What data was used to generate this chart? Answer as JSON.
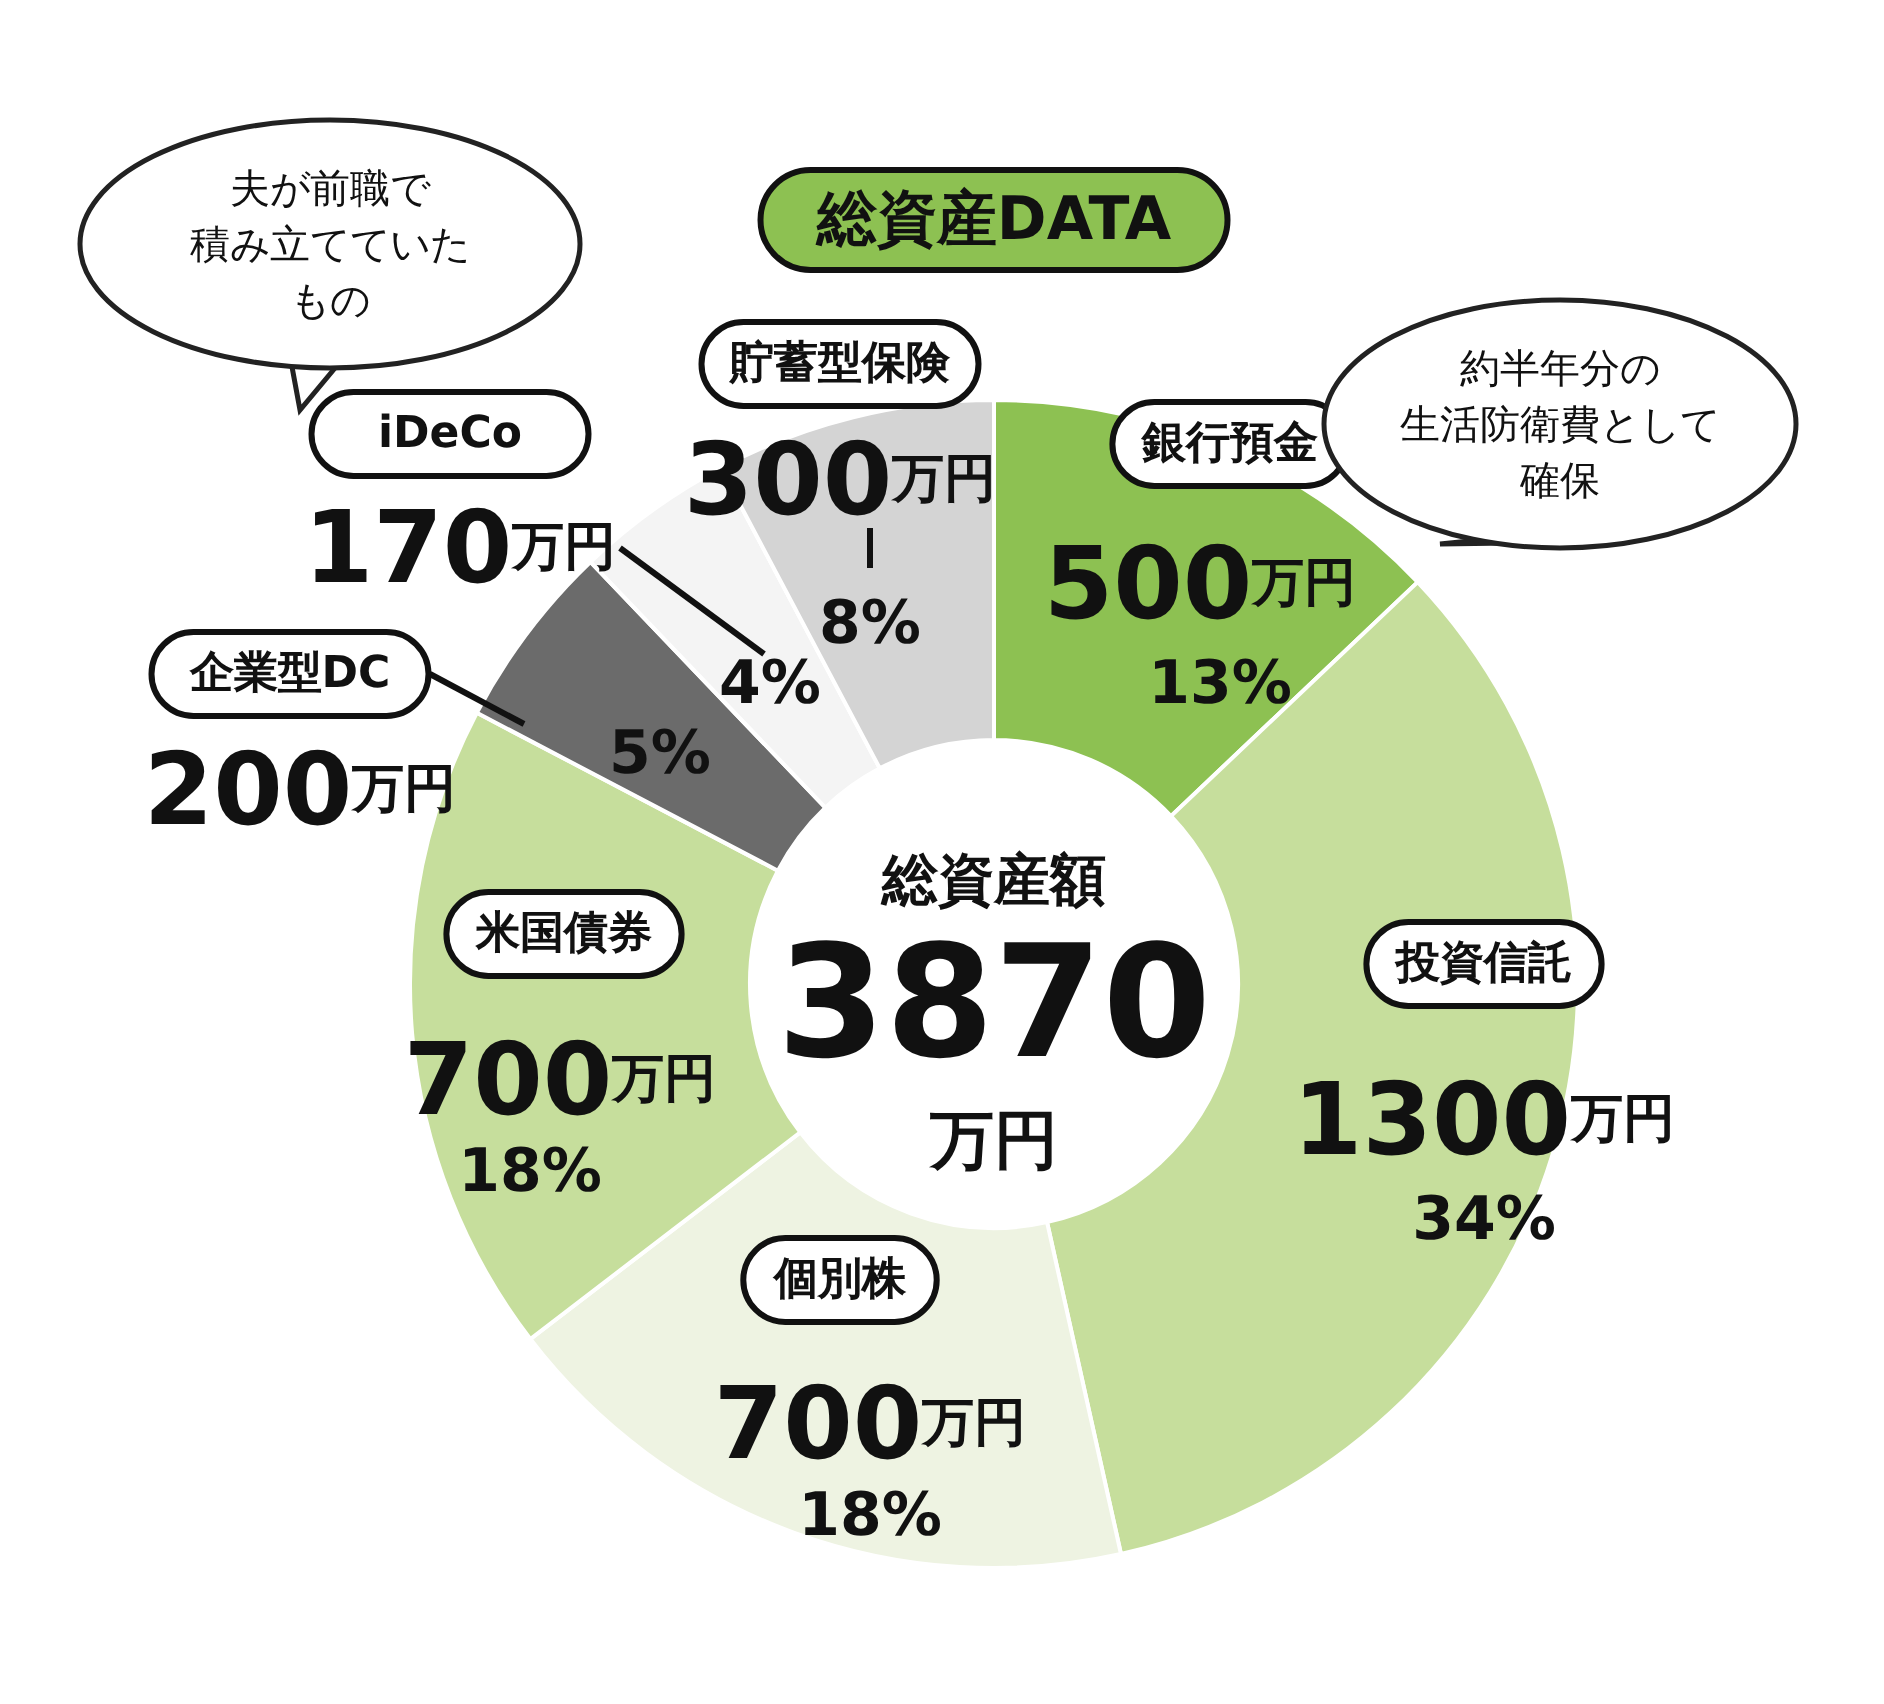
{
  "chart_data": {
    "type": "donut",
    "title": "総資産DATA",
    "categories": [
      "銀行預金",
      "投資信託",
      "個別株",
      "米国債券",
      "企業型DC",
      "iDeCo",
      "貯蓄型保険"
    ],
    "values": [
      500,
      1300,
      700,
      700,
      200,
      170,
      300
    ],
    "colors": [
      "#8dc152",
      "#c6de9c",
      "#eef3e2",
      "#c6de9c",
      "#6b6b6b",
      "#f4f4f4",
      "#d4d4d4"
    ],
    "value_labels": [
      "500万円\n13%",
      "1300万円\n34%",
      "700万円\n18%",
      "700万円\n18%",
      "200万円\n5%",
      "170万円\n4%",
      "300万円\n8%"
    ],
    "annotations": [
      "総資産額",
      "3870",
      "万円",
      "夫が前職で",
      "積み立てていた",
      "もの",
      "約半年分の",
      "生活防衛費として",
      "確保"
    ]
  }
}
